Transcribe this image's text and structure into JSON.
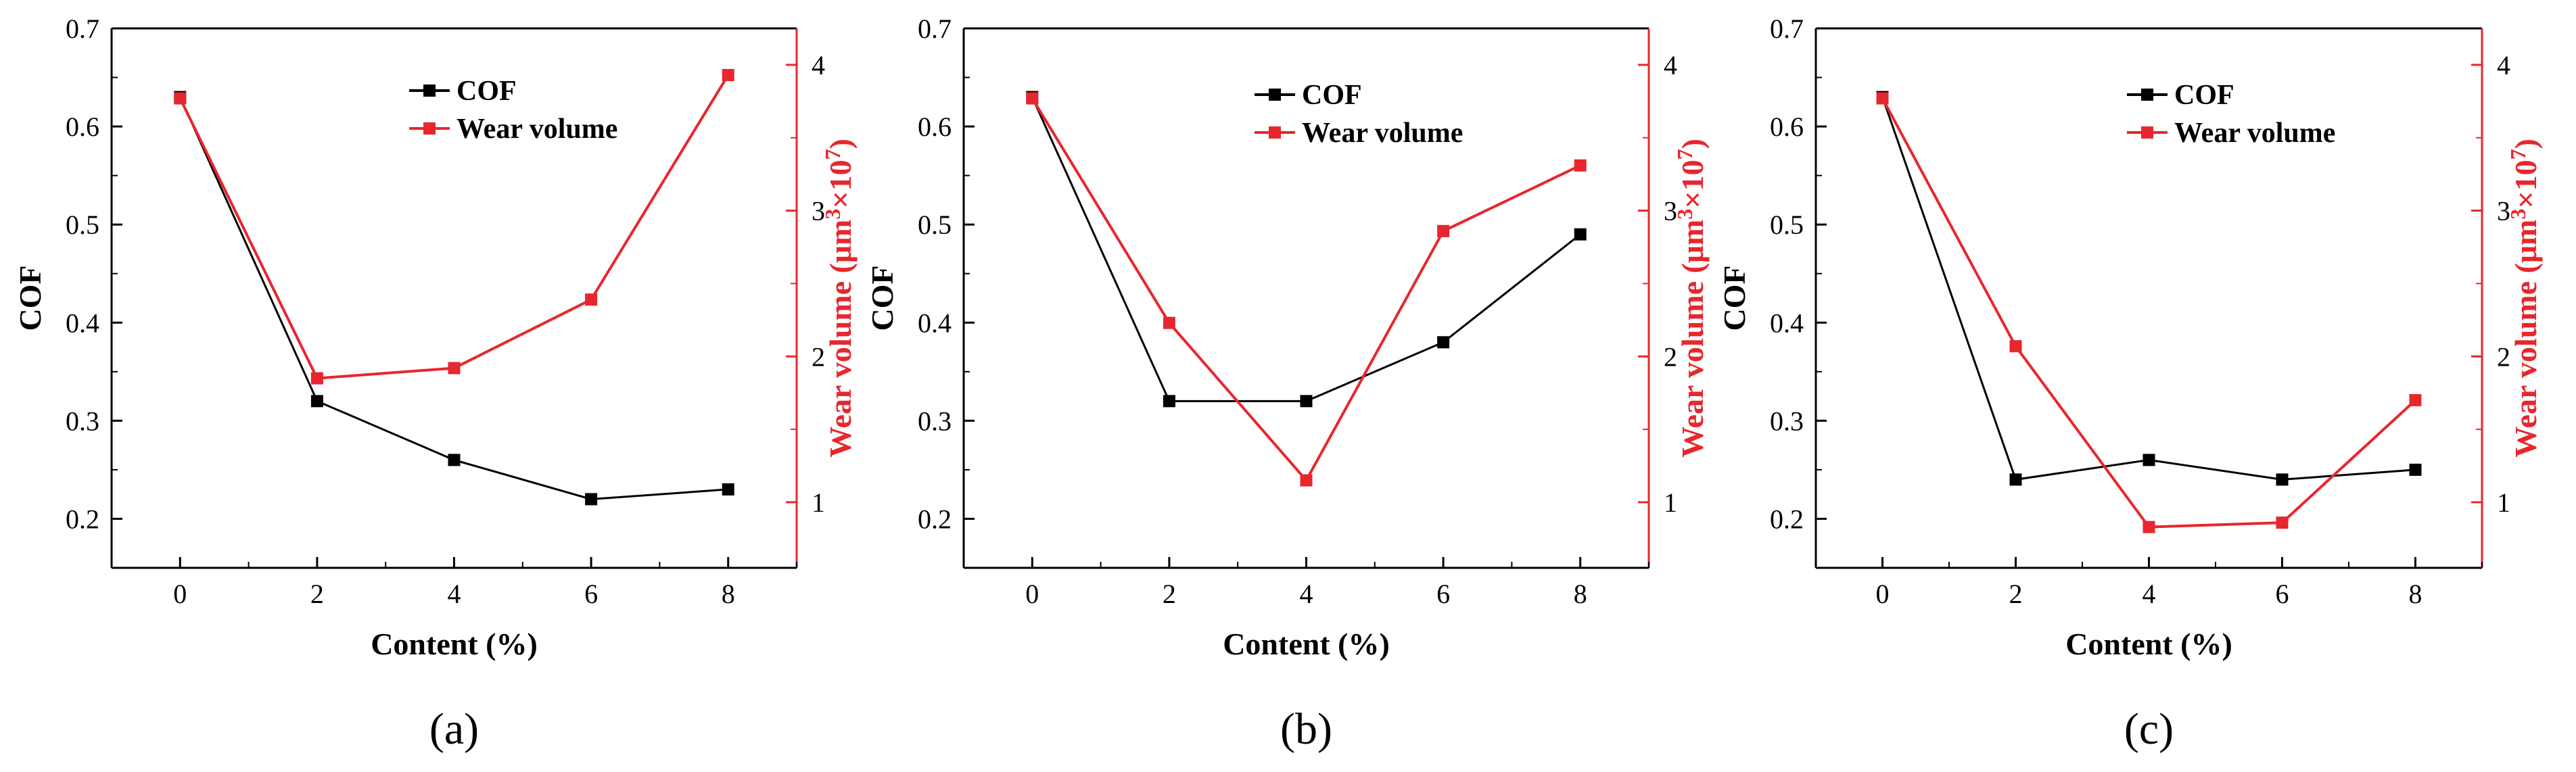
{
  "chart_data": [
    {
      "type": "line",
      "panel_label": "(a)",
      "xlabel": "Content (%)",
      "ylabel": "COF",
      "y2label_prefix": "Wear volume (μm",
      "y2label_sup1": "3",
      "y2label_mid": "×10",
      "y2label_sup2": "7",
      "y2label_suffix": ")",
      "x_ticks": [
        "0",
        "2",
        "4",
        "6",
        "8"
      ],
      "y_ticks": [
        "0.2",
        "0.3",
        "0.4",
        "0.5",
        "0.6",
        "0.7"
      ],
      "y2_ticks": [
        "1",
        "2",
        "3",
        "4"
      ],
      "xlim": [
        -1,
        9
      ],
      "ylim": [
        0.15,
        0.7
      ],
      "y2lim": [
        0.55,
        4.25
      ],
      "legend_position": "top-center",
      "series": [
        {
          "name": "COF",
          "axis": "left",
          "color": "#000000",
          "x": [
            0,
            2,
            4,
            6,
            8
          ],
          "values": [
            0.63,
            0.32,
            0.26,
            0.22,
            0.23
          ]
        },
        {
          "name": "Wear volume",
          "axis": "right",
          "color": "#e8262d",
          "x": [
            0,
            2,
            4,
            6,
            8
          ],
          "values": [
            3.77,
            1.85,
            1.92,
            2.39,
            3.93
          ]
        }
      ]
    },
    {
      "type": "line",
      "panel_label": "(b)",
      "xlabel": "Content (%)",
      "ylabel": "COF",
      "y2label_prefix": "Wear volume (μm",
      "y2label_sup1": "3",
      "y2label_mid": "×10",
      "y2label_sup2": "7",
      "y2label_suffix": ")",
      "x_ticks": [
        "0",
        "2",
        "4",
        "6",
        "8"
      ],
      "y_ticks": [
        "0.2",
        "0.3",
        "0.4",
        "0.5",
        "0.6",
        "0.7"
      ],
      "y2_ticks": [
        "1",
        "2",
        "3",
        "4"
      ],
      "xlim": [
        -1,
        9
      ],
      "ylim": [
        0.15,
        0.7
      ],
      "y2lim": [
        0.55,
        4.25
      ],
      "legend_position": "top-right",
      "series": [
        {
          "name": "COF",
          "axis": "left",
          "color": "#000000",
          "x": [
            0,
            2,
            4,
            6,
            8
          ],
          "values": [
            0.63,
            0.32,
            0.32,
            0.38,
            0.49
          ]
        },
        {
          "name": "Wear volume",
          "axis": "right",
          "color": "#e8262d",
          "x": [
            0,
            2,
            4,
            6,
            8
          ],
          "values": [
            3.77,
            2.23,
            1.15,
            2.86,
            3.31
          ]
        }
      ]
    },
    {
      "type": "line",
      "panel_label": "(c)",
      "xlabel": "Content (%)",
      "ylabel": "COF",
      "y2label_prefix": "Wear volume (μm",
      "y2label_sup1": "3",
      "y2label_mid": "×10",
      "y2label_sup2": "7",
      "y2label_suffix": ")",
      "x_ticks": [
        "0",
        "2",
        "4",
        "6",
        "8"
      ],
      "y_ticks": [
        "0.2",
        "0.3",
        "0.4",
        "0.5",
        "0.6",
        "0.7"
      ],
      "y2_ticks": [
        "1",
        "2",
        "3",
        "4"
      ],
      "xlim": [
        -1,
        9
      ],
      "ylim": [
        0.15,
        0.7
      ],
      "y2lim": [
        0.55,
        4.25
      ],
      "legend_position": "top-center",
      "series": [
        {
          "name": "COF",
          "axis": "left",
          "color": "#000000",
          "x": [
            0,
            2,
            4,
            6,
            8
          ],
          "values": [
            0.63,
            0.24,
            0.26,
            0.24,
            0.25
          ]
        },
        {
          "name": "Wear volume",
          "axis": "right",
          "color": "#e8262d",
          "x": [
            0,
            2,
            4,
            6,
            8
          ],
          "values": [
            3.77,
            2.07,
            0.83,
            0.86,
            1.7
          ]
        }
      ]
    }
  ]
}
